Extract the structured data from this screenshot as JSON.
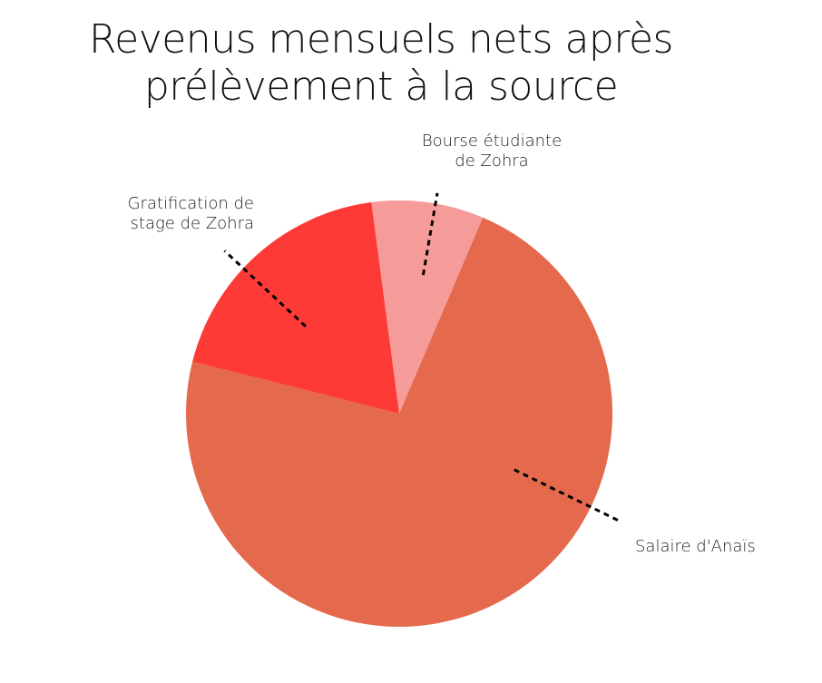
{
  "chart_data": {
    "type": "pie",
    "title": [
      "Revenus mensuels nets après",
      "prélèvement à la source"
    ],
    "slices": [
      {
        "label": [
          "Bourse étudiante",
          "de Zohra"
        ],
        "value": 8.5,
        "color": "#f59c9a"
      },
      {
        "label": [
          "Salaire d'Anaïs"
        ],
        "value": 72.5,
        "color": "#e56a4d"
      },
      {
        "label": [
          "Gratification de",
          "stage de Zohra"
        ],
        "value": 19.0,
        "color": "#fd3a36"
      }
    ],
    "start_angle_deg": -7.5,
    "direction": "clockwise",
    "legend": "none",
    "leader_line_style": "dotted-black"
  }
}
